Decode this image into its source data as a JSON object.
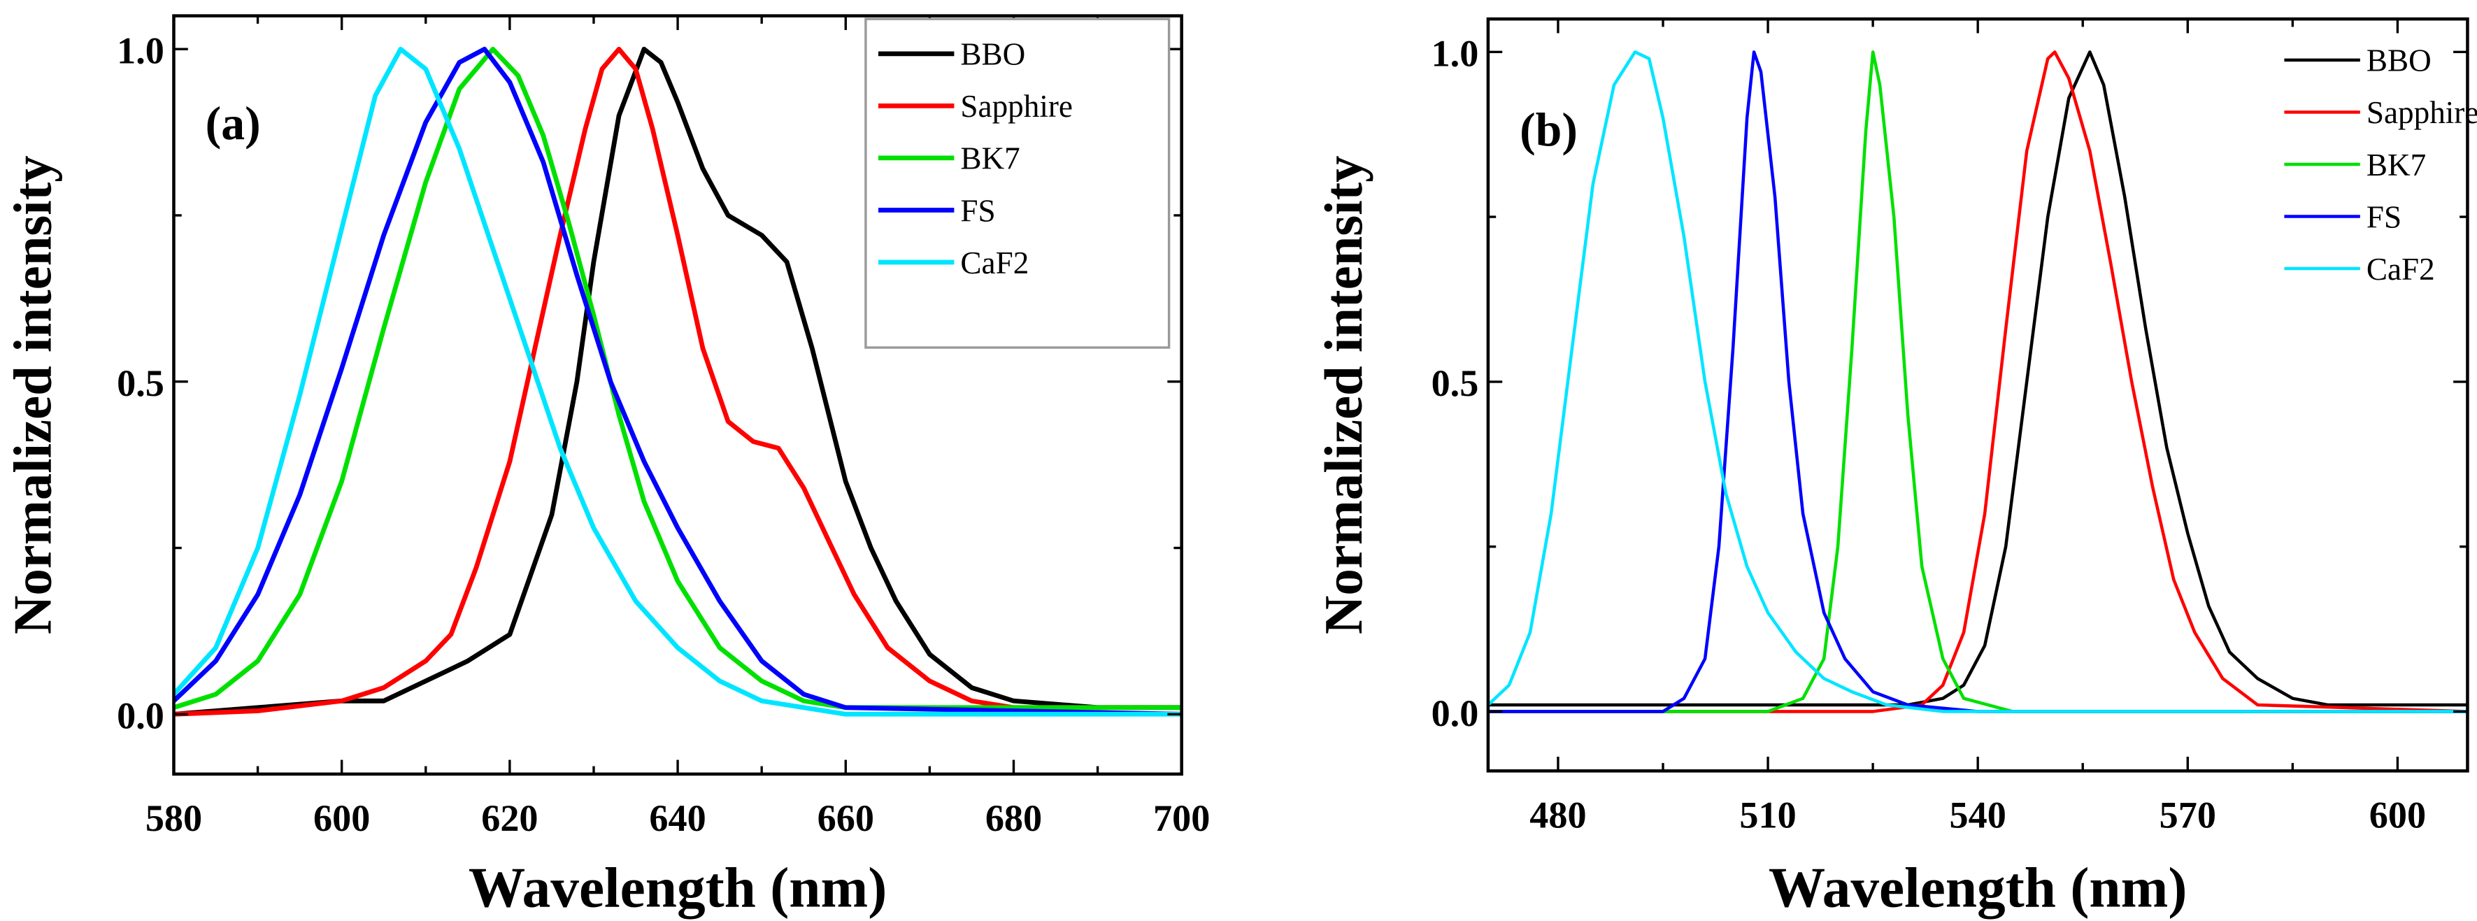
{
  "chart_data": [
    {
      "type": "line",
      "panel_label": "(a)",
      "xlabel": "Wavelength (nm)",
      "ylabel": "Normalized intensity",
      "xlim": [
        580,
        700
      ],
      "ylim": [
        -0.09,
        1.05
      ],
      "xticks": [
        580,
        600,
        620,
        640,
        660,
        680,
        700
      ],
      "yticks": [
        0.0,
        0.5,
        1.0
      ],
      "ytick_labels": [
        "0.0",
        "0.5",
        "1.0"
      ],
      "legend_position": "top-right",
      "legend_boxed": true,
      "series": [
        {
          "name": "BBO",
          "color": "#000000",
          "x": [
            580,
            590,
            600,
            605,
            610,
            615,
            620,
            625,
            628,
            630,
            633,
            636,
            638,
            640,
            643,
            646,
            650,
            653,
            656,
            658,
            660,
            663,
            666,
            670,
            675,
            680,
            690,
            700
          ],
          "y": [
            0.0,
            0.01,
            0.02,
            0.02,
            0.05,
            0.08,
            0.12,
            0.3,
            0.5,
            0.68,
            0.9,
            1.0,
            0.98,
            0.92,
            0.82,
            0.75,
            0.72,
            0.68,
            0.55,
            0.45,
            0.35,
            0.25,
            0.17,
            0.09,
            0.04,
            0.02,
            0.01,
            0.01
          ]
        },
        {
          "name": "Sapphire",
          "color": "#ff0000",
          "x": [
            580,
            590,
            600,
            605,
            610,
            613,
            616,
            620,
            623,
            626,
            629,
            631,
            633,
            635,
            637,
            640,
            643,
            646,
            649,
            652,
            655,
            658,
            661,
            665,
            670,
            675,
            680,
            700
          ],
          "y": [
            0.0,
            0.005,
            0.02,
            0.04,
            0.08,
            0.12,
            0.22,
            0.38,
            0.55,
            0.72,
            0.88,
            0.97,
            1.0,
            0.97,
            0.88,
            0.72,
            0.55,
            0.44,
            0.41,
            0.4,
            0.34,
            0.26,
            0.18,
            0.1,
            0.05,
            0.02,
            0.01,
            0.01
          ]
        },
        {
          "name": "BK7",
          "color": "#00e000",
          "x": [
            580,
            585,
            590,
            595,
            600,
            605,
            610,
            614,
            618,
            621,
            624,
            627,
            630,
            633,
            636,
            640,
            645,
            650,
            655,
            660,
            700
          ],
          "y": [
            0.01,
            0.03,
            0.08,
            0.18,
            0.35,
            0.58,
            0.8,
            0.94,
            1.0,
            0.96,
            0.87,
            0.74,
            0.6,
            0.45,
            0.32,
            0.2,
            0.1,
            0.05,
            0.02,
            0.01,
            0.01
          ]
        },
        {
          "name": "FS",
          "color": "#0000ff",
          "x": [
            580,
            585,
            590,
            595,
            600,
            605,
            610,
            614,
            617,
            620,
            624,
            628,
            632,
            636,
            640,
            645,
            650,
            655,
            660,
            700
          ],
          "y": [
            0.02,
            0.08,
            0.18,
            0.33,
            0.52,
            0.72,
            0.89,
            0.98,
            1.0,
            0.95,
            0.83,
            0.66,
            0.5,
            0.38,
            0.28,
            0.17,
            0.08,
            0.03,
            0.01,
            0.0
          ]
        },
        {
          "name": "CaF2",
          "color": "#00e5ff",
          "x": [
            580,
            585,
            590,
            595,
            600,
            604,
            607,
            610,
            614,
            618,
            622,
            626,
            630,
            635,
            640,
            645,
            650,
            660,
            700
          ],
          "y": [
            0.03,
            0.1,
            0.25,
            0.48,
            0.73,
            0.93,
            1.0,
            0.97,
            0.85,
            0.7,
            0.55,
            0.4,
            0.28,
            0.17,
            0.1,
            0.05,
            0.02,
            0.0,
            0.0
          ]
        }
      ]
    },
    {
      "type": "line",
      "panel_label": "(b)",
      "xlabel": "Wavelength (nm)",
      "ylabel": "Normalized intensity",
      "xlim": [
        470,
        610
      ],
      "ylim": [
        -0.09,
        1.05
      ],
      "xticks": [
        480,
        510,
        540,
        570,
        600
      ],
      "yticks": [
        0.0,
        0.5,
        1.0
      ],
      "ytick_labels": [
        "0.0",
        "0.5",
        "1.0"
      ],
      "legend_position": "top-right",
      "legend_boxed": false,
      "series": [
        {
          "name": "BBO",
          "color": "#000000",
          "x": [
            470,
            520,
            530,
            535,
            538,
            541,
            544,
            547,
            550,
            553,
            556,
            558,
            561,
            564,
            567,
            570,
            573,
            576,
            580,
            585,
            590,
            610
          ],
          "y": [
            0.01,
            0.01,
            0.01,
            0.02,
            0.04,
            0.1,
            0.25,
            0.5,
            0.75,
            0.93,
            1.0,
            0.95,
            0.78,
            0.58,
            0.4,
            0.27,
            0.16,
            0.09,
            0.05,
            0.02,
            0.01,
            0.01
          ]
        },
        {
          "name": "Sapphire",
          "color": "#ff0000",
          "x": [
            470,
            525,
            532,
            535,
            538,
            541,
            544,
            547,
            550,
            551,
            553,
            556,
            559,
            562,
            565,
            568,
            571,
            575,
            580,
            610
          ],
          "y": [
            0.0,
            0.0,
            0.01,
            0.04,
            0.12,
            0.3,
            0.58,
            0.85,
            0.99,
            1.0,
            0.96,
            0.85,
            0.68,
            0.5,
            0.34,
            0.2,
            0.12,
            0.05,
            0.01,
            0.0
          ]
        },
        {
          "name": "BK7",
          "color": "#00e000",
          "x": [
            470,
            510,
            515,
            518,
            520,
            522,
            524,
            525,
            526,
            528,
            530,
            532,
            535,
            538,
            545,
            610
          ],
          "y": [
            0.0,
            0.0,
            0.02,
            0.08,
            0.25,
            0.55,
            0.88,
            1.0,
            0.95,
            0.75,
            0.45,
            0.22,
            0.08,
            0.02,
            0.0,
            0.0
          ]
        },
        {
          "name": "FS",
          "color": "#0000ff",
          "x": [
            470,
            495,
            498,
            501,
            503,
            505,
            507,
            508,
            509,
            511,
            513,
            515,
            518,
            521,
            525,
            530,
            540,
            610
          ],
          "y": [
            0.0,
            0.0,
            0.02,
            0.08,
            0.25,
            0.55,
            0.9,
            1.0,
            0.97,
            0.78,
            0.5,
            0.3,
            0.15,
            0.08,
            0.03,
            0.01,
            0.0,
            0.0
          ]
        },
        {
          "name": "CaF2",
          "color": "#00e5ff",
          "x": [
            470,
            473,
            476,
            479,
            482,
            485,
            488,
            491,
            493,
            495,
            498,
            501,
            504,
            507,
            510,
            514,
            518,
            522,
            527,
            535,
            610
          ],
          "y": [
            0.01,
            0.04,
            0.12,
            0.3,
            0.55,
            0.8,
            0.95,
            1.0,
            0.99,
            0.9,
            0.72,
            0.5,
            0.33,
            0.22,
            0.15,
            0.09,
            0.05,
            0.03,
            0.01,
            0.0,
            0.0
          ]
        }
      ]
    }
  ]
}
